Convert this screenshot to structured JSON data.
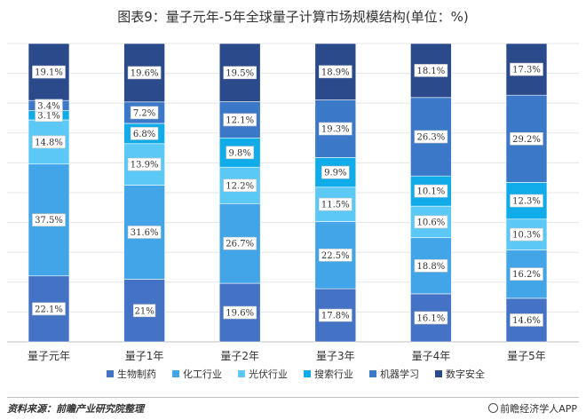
{
  "title": "图表9：量子元年-5年全球量子计算市场规模结构(单位：%)",
  "footer": {
    "source": "资料来源：前瞻产业研究院整理",
    "brand": "前瞻经济学人APP"
  },
  "chart_data": {
    "type": "bar",
    "stacked": true,
    "percent": true,
    "categories": [
      "量子元年",
      "量子1年",
      "量子2年",
      "量子3年",
      "量子4年",
      "量子5年"
    ],
    "series": [
      {
        "name": "生物制药",
        "color": "#4472C4",
        "values": [
          22.1,
          21,
          19.6,
          17.8,
          16.1,
          14.6
        ],
        "labels": [
          "22.1%",
          "21%",
          "19.6%",
          "17.8%",
          "16.1%",
          "14.6%"
        ]
      },
      {
        "name": "化工行业",
        "color": "#41A5E8",
        "values": [
          37.5,
          31.6,
          26.7,
          22.5,
          18.8,
          16.2
        ],
        "labels": [
          "37.5%",
          "31.6%",
          "26.7%",
          "22.5%",
          "18.8%",
          "16.2%"
        ]
      },
      {
        "name": "光伏行业",
        "color": "#5BC8F5",
        "values": [
          14.8,
          13.9,
          12.2,
          11.5,
          10.6,
          10.3
        ],
        "labels": [
          "14.8%",
          "13.9%",
          "12.2%",
          "11.5%",
          "10.6%",
          "10.3%"
        ]
      },
      {
        "name": "搜索行业",
        "color": "#10ACEA",
        "values": [
          3.1,
          6.8,
          9.8,
          9.9,
          10.1,
          12.3
        ],
        "labels": [
          "3.1%",
          "6.8%",
          "9.8%",
          "9.9%",
          "10.1%",
          "12.3%"
        ]
      },
      {
        "name": "机器学习",
        "color": "#3C78C8",
        "values": [
          3.4,
          7.2,
          12.1,
          19.3,
          26.3,
          29.2
        ],
        "labels": [
          "3.4%",
          "7.2%",
          "12.1%",
          "19.3%",
          "26.3%",
          "29.2%"
        ]
      },
      {
        "name": "数字安全",
        "color": "#2B4A8C",
        "values": [
          19.1,
          19.6,
          19.5,
          18.9,
          18.1,
          17.3
        ],
        "labels": [
          "19.1%",
          "19.6%",
          "19.5%",
          "18.9%",
          "18.1%",
          "17.3%"
        ]
      }
    ],
    "legend": "bottom",
    "grid": true
  }
}
